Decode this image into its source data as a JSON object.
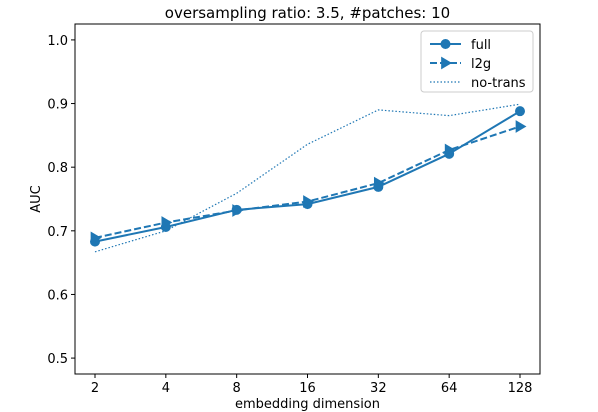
{
  "chart_data": {
    "type": "line",
    "title": "oversampling ratio: 3.5, #patches: 10",
    "xlabel": "embedding dimension",
    "ylabel": "AUC",
    "categories": [
      "2",
      "4",
      "8",
      "16",
      "32",
      "64",
      "128"
    ],
    "ylim": [
      0.475,
      1.025
    ],
    "yticks": [
      "0.5",
      "0.6",
      "0.7",
      "0.8",
      "0.9",
      "1.0"
    ],
    "grid": false,
    "legend_position": "top-right",
    "color": "#1f77b4",
    "series": [
      {
        "name": "full",
        "style": "solid",
        "marker": "circle",
        "values": [
          0.683,
          0.706,
          0.733,
          0.742,
          0.769,
          0.821,
          0.888
        ]
      },
      {
        "name": "l2g",
        "style": "dashed",
        "marker": "triangle-right",
        "values": [
          0.689,
          0.713,
          0.732,
          0.746,
          0.775,
          0.827,
          0.864
        ]
      },
      {
        "name": "no-trans",
        "style": "dotted",
        "marker": "none",
        "values": [
          0.667,
          0.7,
          0.759,
          0.836,
          0.89,
          0.881,
          0.899
        ]
      }
    ]
  }
}
